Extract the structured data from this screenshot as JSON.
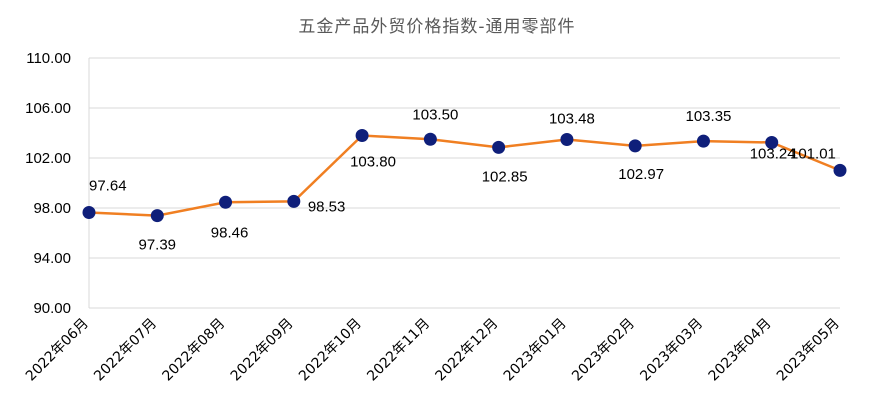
{
  "chart_data": {
    "type": "line",
    "title": "五金产品外贸价格指数-通用零部件",
    "xlabel": "",
    "ylabel": "",
    "categories": [
      "2022年06月",
      "2022年07月",
      "2022年08月",
      "2022年09月",
      "2022年10月",
      "2022年11月",
      "2022年12月",
      "2023年01月",
      "2023年02月",
      "2023年03月",
      "2023年04月",
      "2023年05月"
    ],
    "series": [
      {
        "values": [
          97.64,
          97.39,
          98.46,
          98.53,
          103.8,
          103.5,
          102.85,
          103.48,
          102.97,
          103.35,
          103.24,
          101.01
        ],
        "line_color": "#F07F22",
        "marker_color": "#0F1F7A"
      }
    ],
    "data_labels": [
      "97.64",
      "97.39",
      "98.46",
      "98.53",
      "103.80",
      "103.50",
      "102.85",
      "103.48",
      "102.97",
      "103.35",
      "103.24",
      "101.01"
    ],
    "ylim": [
      90,
      110
    ],
    "yticks": [
      "90.00",
      "94.00",
      "98.00",
      "102.00",
      "106.00",
      "110.00"
    ],
    "grid": true,
    "legend": "none"
  }
}
